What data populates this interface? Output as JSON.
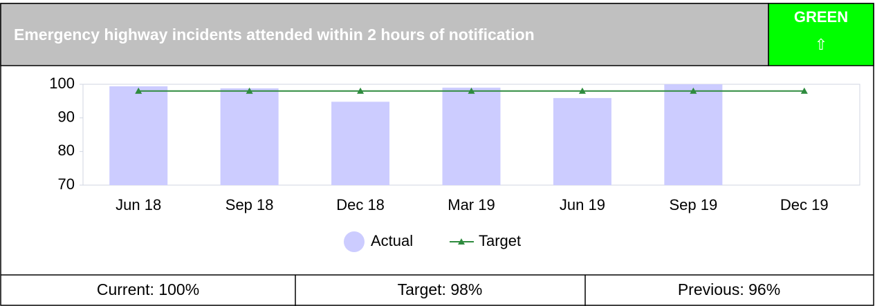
{
  "header": {
    "title": "Emergency highway incidents attended within 2 hours of notification",
    "status": "GREEN",
    "arrow": "⇧"
  },
  "chart_data": {
    "type": "bar",
    "categories": [
      "Jun 18",
      "Sep 18",
      "Dec 18",
      "Mar 19",
      "Jun 19",
      "Sep 19",
      "Dec 19"
    ],
    "series": [
      {
        "name": "Actual",
        "type": "bar",
        "color": "#ccccff",
        "values": [
          99.4,
          98.8,
          94.8,
          99,
          95.9,
          100,
          null
        ]
      },
      {
        "name": "Target",
        "type": "line",
        "color": "#2e8b3e",
        "values": [
          98,
          98,
          98,
          98,
          98,
          98,
          98
        ]
      }
    ],
    "ylim": [
      70,
      100
    ],
    "yticks": [
      70,
      80,
      90,
      100
    ],
    "legend": "bottom"
  },
  "footer": {
    "cells": [
      "Current: 100%",
      "Target: 98%",
      "Previous: 96%"
    ]
  }
}
